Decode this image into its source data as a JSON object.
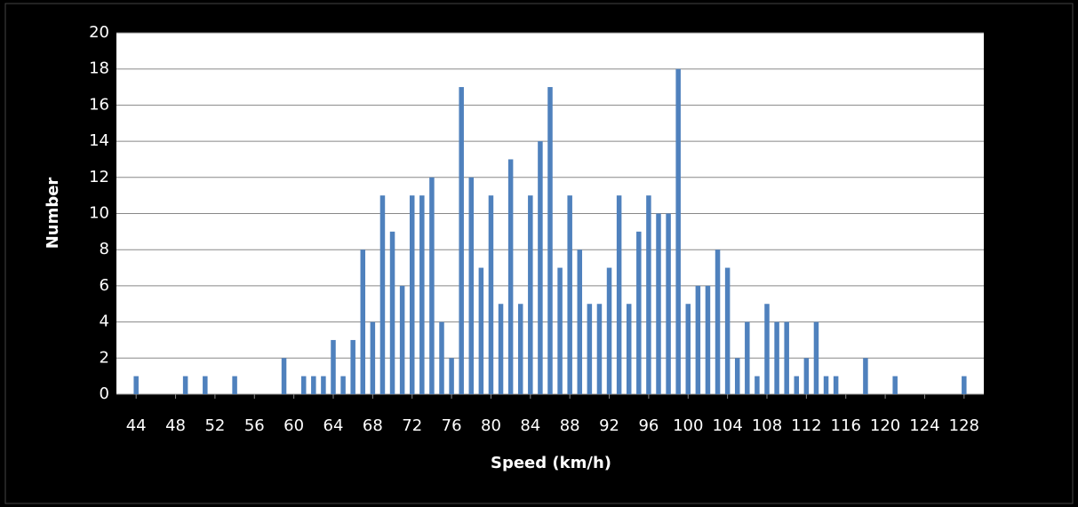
{
  "chart_data": {
    "type": "bar",
    "x_label": "Speed (km/h)",
    "y_label": "Number",
    "x": [
      44,
      49,
      51,
      54,
      59,
      61,
      62,
      63,
      64,
      65,
      66,
      67,
      68,
      69,
      70,
      71,
      72,
      73,
      74,
      75,
      76,
      77,
      78,
      79,
      80,
      81,
      82,
      83,
      84,
      85,
      86,
      87,
      88,
      89,
      90,
      91,
      92,
      93,
      94,
      95,
      96,
      97,
      98,
      99,
      100,
      101,
      102,
      103,
      104,
      105,
      106,
      107,
      108,
      109,
      110,
      111,
      112,
      113,
      114,
      115,
      118,
      121,
      128
    ],
    "values": [
      1,
      1,
      1,
      1,
      2,
      1,
      1,
      1,
      3,
      1,
      3,
      8,
      4,
      11,
      9,
      6,
      11,
      11,
      12,
      4,
      2,
      17,
      12,
      7,
      11,
      5,
      13,
      5,
      11,
      14,
      17,
      7,
      11,
      8,
      5,
      5,
      7,
      11,
      5,
      9,
      11,
      10,
      10,
      18,
      5,
      6,
      6,
      8,
      7,
      2,
      4,
      1,
      5,
      4,
      4,
      1,
      2,
      4,
      1,
      1,
      2,
      1,
      1
    ],
    "color": "#4f81bd",
    "xlim": [
      42,
      130
    ],
    "xticks": [
      44,
      48,
      52,
      56,
      60,
      64,
      68,
      72,
      76,
      80,
      84,
      88,
      92,
      96,
      100,
      104,
      108,
      112,
      116,
      120,
      124,
      128
    ],
    "ylim": [
      0,
      20
    ],
    "yticks": [
      0,
      2,
      4,
      6,
      8,
      10,
      12,
      14,
      16,
      18,
      20
    ],
    "grid": true
  }
}
